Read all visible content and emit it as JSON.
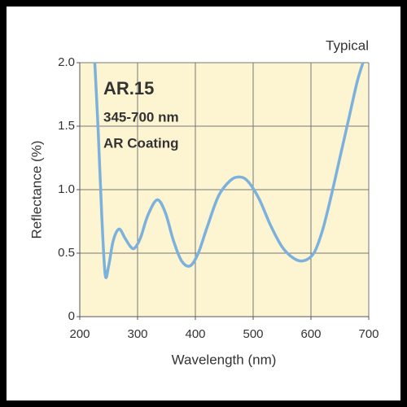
{
  "chart_data": {
    "type": "line",
    "title": "AR.15",
    "subtitle": "345-700 nm",
    "annotations": [
      "AR Coating",
      "Typical"
    ],
    "x_label": "Wavelength (nm)",
    "y_label": "Reflectance (%)",
    "x": [
      226,
      232,
      238,
      244,
      250,
      258,
      268,
      278,
      288,
      295,
      305,
      318,
      334,
      348,
      362,
      376,
      391,
      405,
      420,
      440,
      460,
      475,
      490,
      510,
      530,
      550,
      570,
      587,
      605,
      620,
      635,
      650,
      665,
      680,
      690
    ],
    "series": [
      {
        "name": "AR.15",
        "color": "#7bb1dc",
        "values": [
          2.0,
          1.45,
          0.8,
          0.33,
          0.4,
          0.6,
          0.69,
          0.62,
          0.55,
          0.54,
          0.62,
          0.8,
          0.92,
          0.82,
          0.6,
          0.44,
          0.4,
          0.5,
          0.7,
          0.95,
          1.07,
          1.1,
          1.07,
          0.93,
          0.72,
          0.55,
          0.46,
          0.44,
          0.5,
          0.68,
          0.95,
          1.25,
          1.55,
          1.85,
          2.0
        ]
      }
    ],
    "xlim": [
      200,
      700
    ],
    "xticks": [
      200,
      300,
      400,
      500,
      600,
      700
    ],
    "ylim": [
      0,
      2
    ],
    "yticks": [
      0,
      {
        "value": 0.5,
        "label": "0.5"
      },
      {
        "value": 1,
        "label": "1.0"
      },
      {
        "value": 1.5,
        "label": "1.5"
      },
      {
        "value": 2,
        "label": "2.0"
      }
    ],
    "grid": true,
    "background": "#fdf5d2"
  }
}
